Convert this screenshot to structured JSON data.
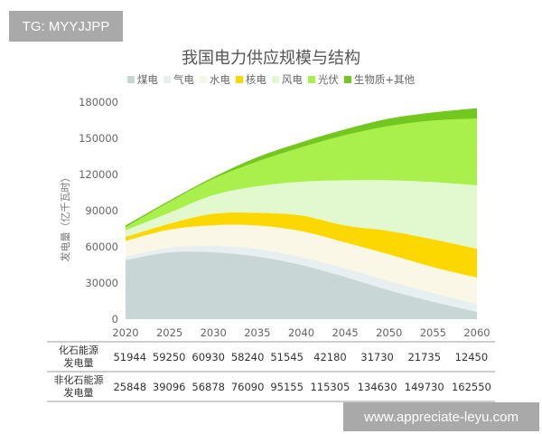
{
  "watermarks": {
    "top_left": "TG: MYYJJPP",
    "bottom_right": "www.appreciate-leyu.com"
  },
  "chart_data": {
    "type": "area",
    "stacked": true,
    "title": "我国电力供应规模与结构",
    "ylabel": "发电量（亿千瓦时）",
    "xlabel": "",
    "ylim": [
      0,
      180000
    ],
    "yticks": [
      "0",
      "30000",
      "60000",
      "90000",
      "120000",
      "150000",
      "180000"
    ],
    "x": [
      "2020",
      "2025",
      "2030",
      "2035",
      "2040",
      "2045",
      "2050",
      "2055",
      "2060"
    ],
    "legend_position": "top",
    "grid": false,
    "series": [
      {
        "name": "煤电",
        "color": "#c9d6d6",
        "values": [
          49000,
          55500,
          55500,
          52000,
          45000,
          35000,
          24000,
          14500,
          6000
        ]
      },
      {
        "name": "气电",
        "color": "#e8eff0",
        "values": [
          2944,
          3750,
          5430,
          6240,
          6545,
          7180,
          7730,
          7235,
          6450
        ]
      },
      {
        "name": "水电",
        "color": "#fbf7e6",
        "values": [
          13000,
          15000,
          17000,
          19500,
          21500,
          21500,
          22000,
          21500,
          22000
        ]
      },
      {
        "name": "核电",
        "color": "#fcd800",
        "values": [
          3300,
          5000,
          9500,
          10500,
          13000,
          14000,
          19500,
          23000,
          24000
        ]
      },
      {
        "name": "风电",
        "color": "#e2f9cf",
        "values": [
          5500,
          9000,
          15500,
          22000,
          28000,
          37500,
          42000,
          47500,
          52500
        ]
      },
      {
        "name": "光伏",
        "color": "#aaf04c",
        "values": [
          2500,
          9000,
          13500,
          20500,
          28500,
          37500,
          45000,
          51000,
          55500
        ]
      },
      {
        "name": "生物质+其他",
        "color": "#72c81e",
        "values": [
          1548,
          1096,
          1378,
          3590,
          4155,
          4805,
          6130,
          6730,
          8550
        ]
      }
    ],
    "table": {
      "rows": [
        {
          "label": [
            "化石能源",
            "发电量"
          ],
          "values": [
            "51944",
            "59250",
            "60930",
            "58240",
            "51545",
            "42180",
            "31730",
            "21735",
            "12450"
          ]
        },
        {
          "label": [
            "非化石能源",
            "发电量"
          ],
          "values": [
            "25848",
            "39096",
            "56878",
            "76090",
            "95155",
            "115305",
            "134630",
            "149730",
            "162550"
          ]
        }
      ]
    }
  }
}
